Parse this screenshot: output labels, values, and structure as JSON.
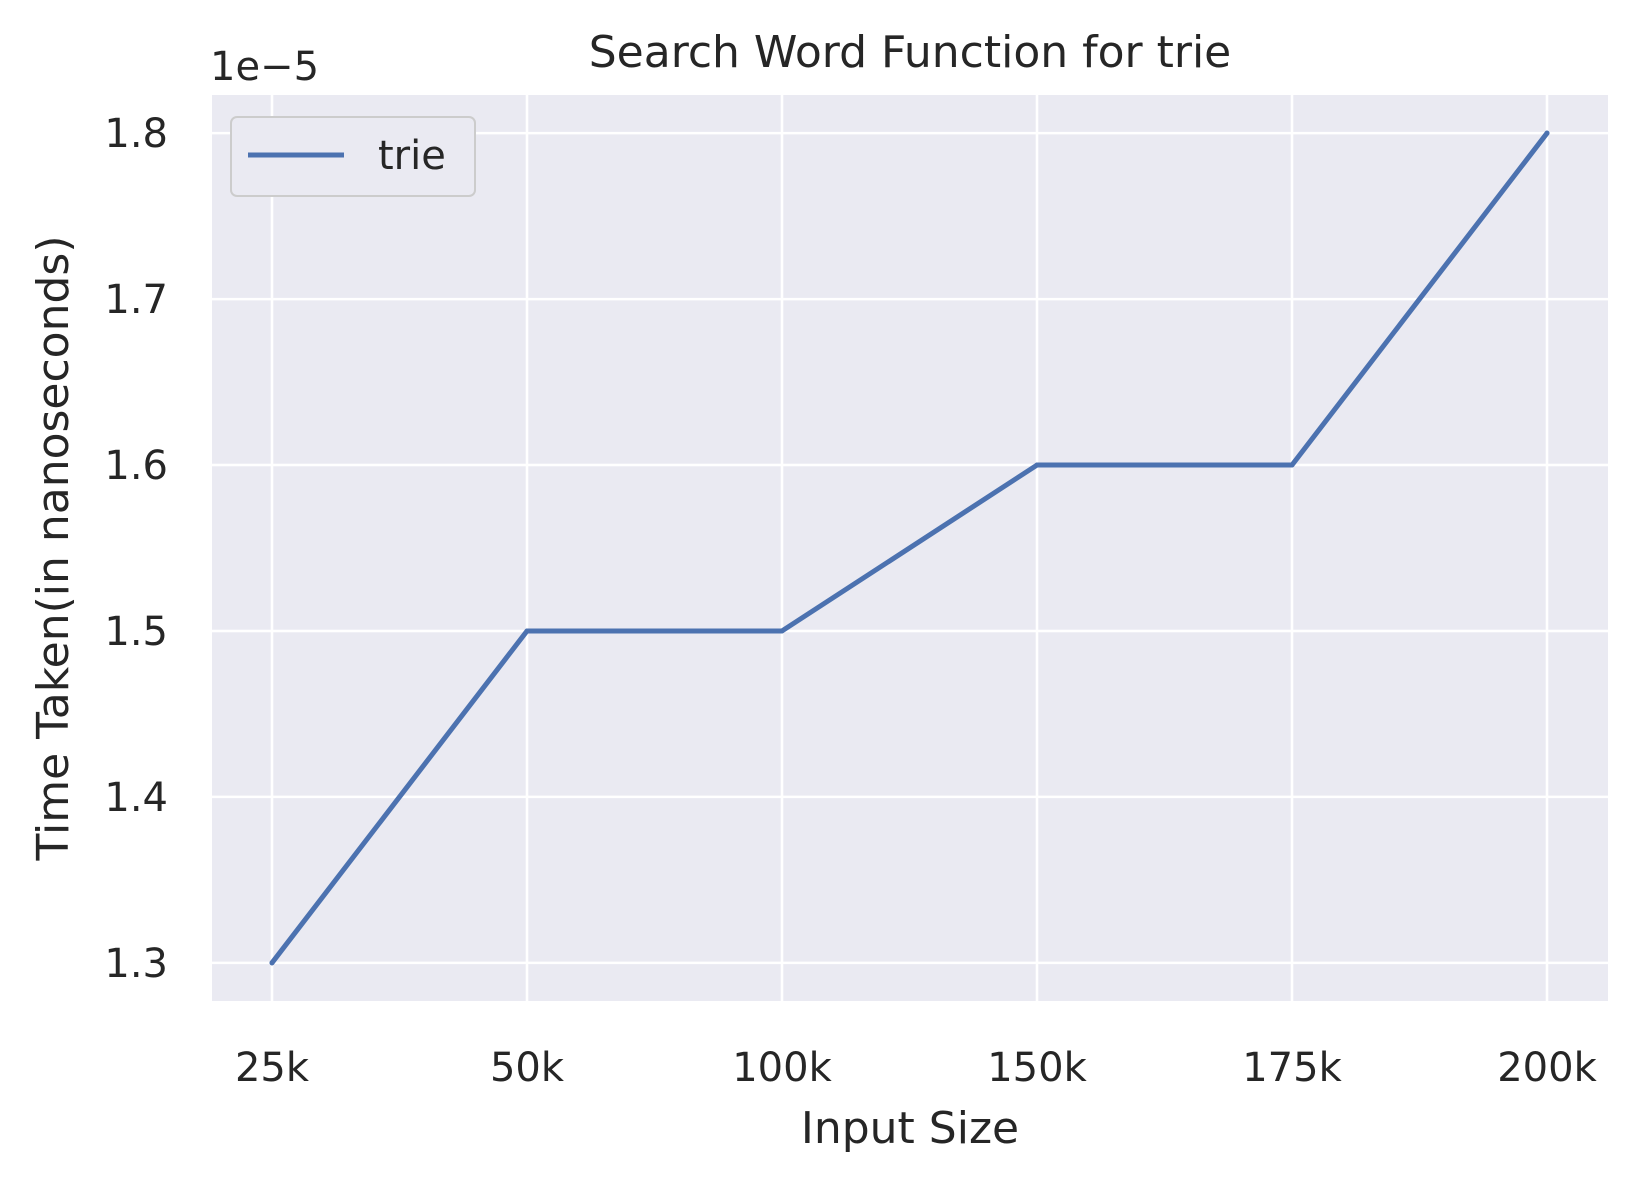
{
  "chart_data": {
    "type": "line",
    "title": "Search Word Function for trie",
    "xlabel": "Input Size",
    "ylabel": "Time Taken(in nanoseconds)",
    "offset_text": "1e−5",
    "categories": [
      "25k",
      "50k",
      "100k",
      "150k",
      "175k",
      "200k"
    ],
    "series": [
      {
        "name": "trie",
        "values": [
          1.3,
          1.5,
          1.5,
          1.6,
          1.6,
          1.8
        ],
        "color": "#4c72b0"
      }
    ],
    "yticks": [
      1.3,
      1.4,
      1.5,
      1.6,
      1.7,
      1.8
    ],
    "ytick_labels": [
      "1.3",
      "1.4",
      "1.5",
      "1.6",
      "1.7",
      "1.8"
    ],
    "ylim": [
      1.277,
      1.823
    ],
    "y_scale_multiplier": "1e-5",
    "grid": true,
    "legend_position": "top-left",
    "background_color": "#eaeaf2",
    "grid_color": "#ffffff"
  }
}
